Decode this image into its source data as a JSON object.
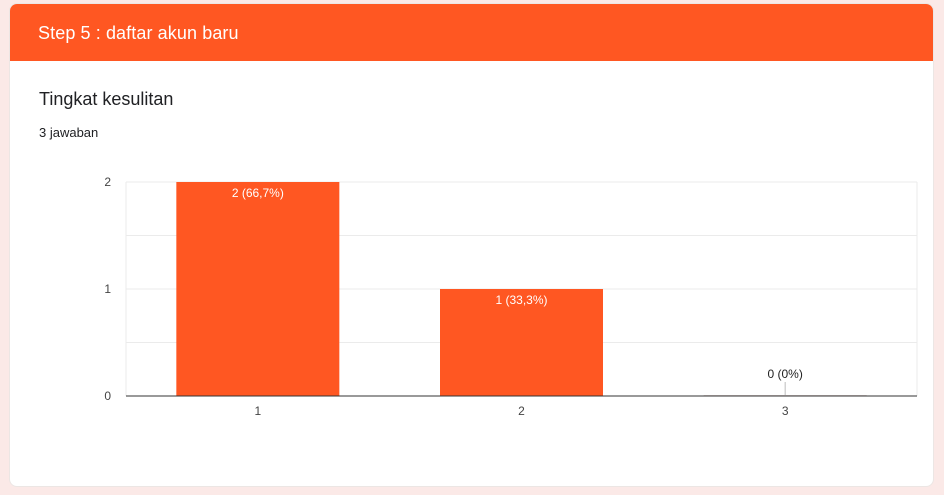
{
  "header": {
    "title": "Step 5 : daftar akun baru"
  },
  "question": {
    "title": "Tingkat kesulitan",
    "responses": "3 jawaban"
  },
  "colors": {
    "accent": "#ff5722",
    "bar": "#ff5722",
    "page_bg": "#fbe9e7"
  },
  "chart_data": {
    "type": "bar",
    "categories": [
      "1",
      "2",
      "3"
    ],
    "values": [
      2,
      1,
      0
    ],
    "data_labels": [
      "2 (66,7%)",
      "1 (33,3%)",
      "0 (0%)"
    ],
    "y_ticks": [
      "0",
      "1",
      "2"
    ],
    "ylim": [
      0,
      2
    ],
    "grid": true,
    "title": "",
    "xlabel": "",
    "ylabel": ""
  }
}
